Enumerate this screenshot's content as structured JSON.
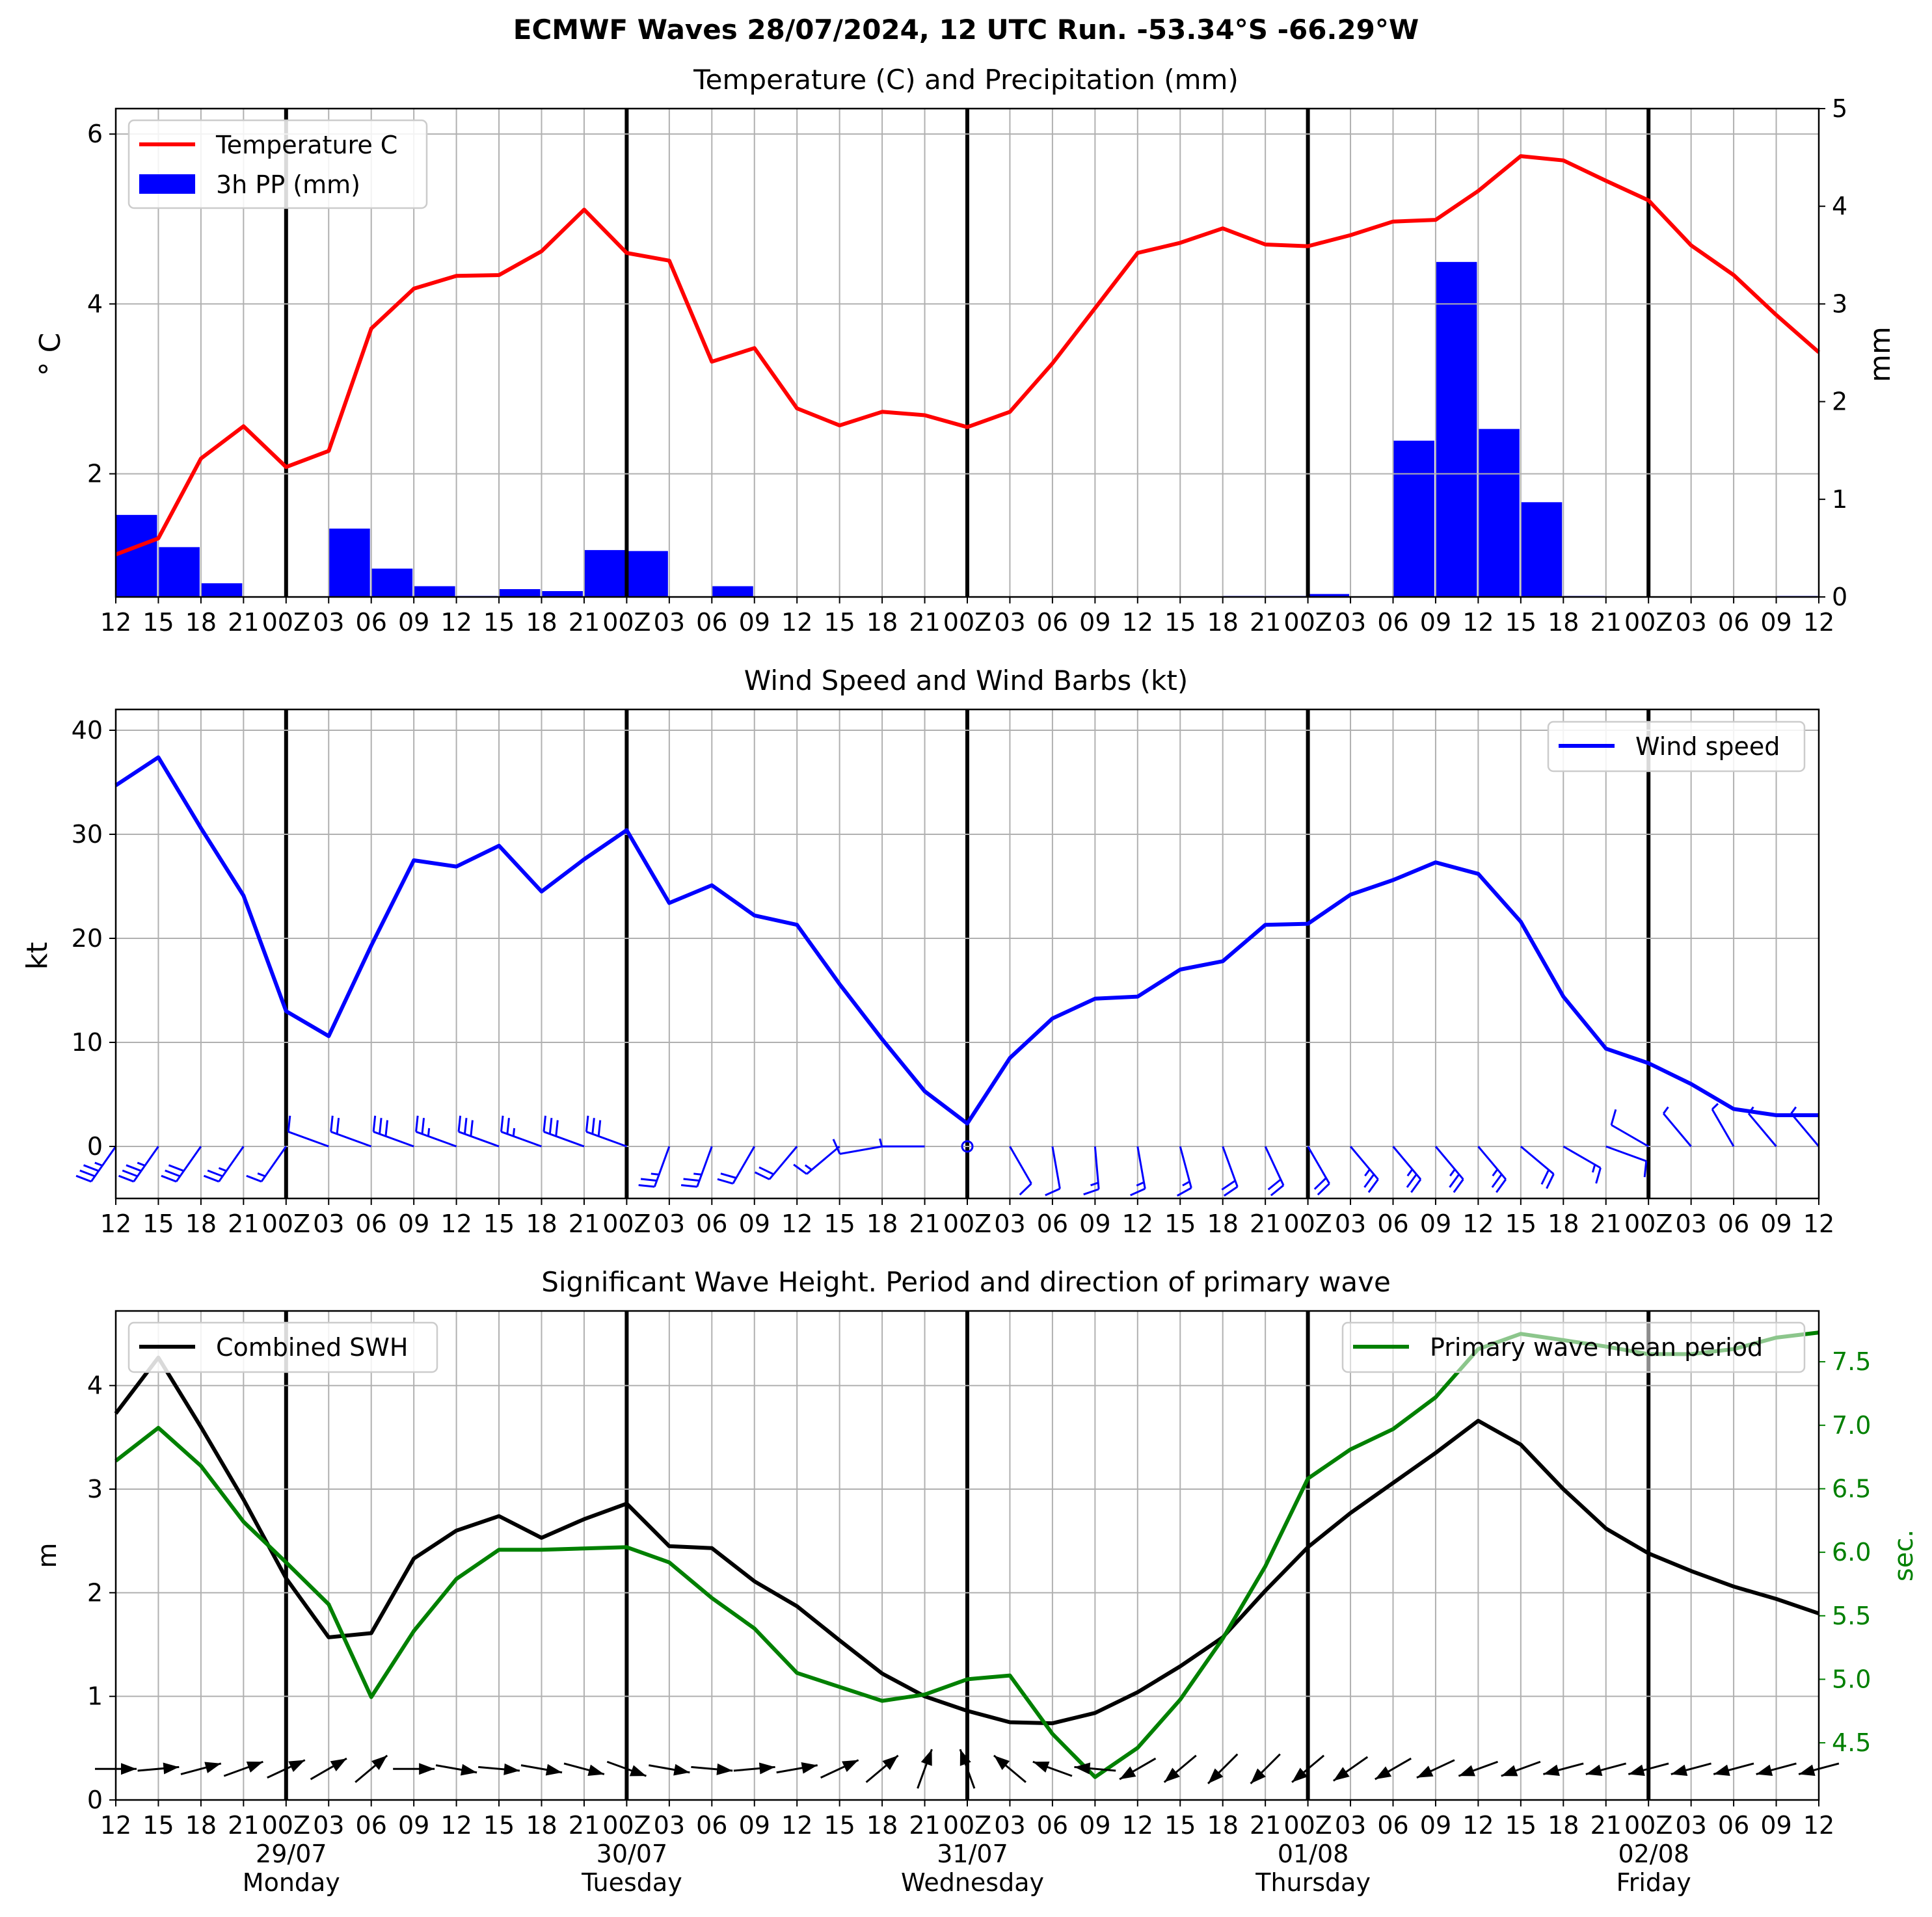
{
  "suptitle": "ECMWF Waves 28/07/2024, 12 UTC Run. -53.34°S -66.29°W",
  "x_tick_labels": [
    "12",
    "15",
    "18",
    "21",
    "00Z",
    "03",
    "06",
    "09",
    "12",
    "15",
    "18",
    "21",
    "00Z",
    "03",
    "06",
    "09",
    "12",
    "15",
    "18",
    "21",
    "00Z",
    "03",
    "06",
    "09",
    "12",
    "15",
    "18",
    "21",
    "00Z",
    "03",
    "06",
    "09",
    "12",
    "15",
    "18",
    "21",
    "00Z",
    "03",
    "06",
    "09",
    "12"
  ],
  "day_labels": [
    {
      "date": "29/07",
      "day": "Monday"
    },
    {
      "date": "30/07",
      "day": "Tuesday"
    },
    {
      "date": "31/07",
      "day": "Wednesday"
    },
    {
      "date": "01/08",
      "day": "Thursday"
    },
    {
      "date": "02/08",
      "day": "Friday"
    }
  ],
  "chart_data": [
    {
      "type": "line",
      "title": "Temperature (C) and Precipitation (mm)",
      "ylabel": "° C",
      "ylabel_right": "mm",
      "ylim": [
        0.55,
        6.3
      ],
      "yticks": [
        2,
        4,
        6
      ],
      "ylim_right": [
        0,
        5
      ],
      "yticks_right": [
        0,
        1,
        2,
        3,
        4,
        5
      ],
      "legend_position": "upper-left",
      "grid": true,
      "series": [
        {
          "name": "Temperature C",
          "color": "#ff0000",
          "values": [
            1.05,
            1.24,
            2.18,
            2.56,
            2.08,
            2.27,
            3.71,
            4.18,
            4.33,
            4.34,
            4.62,
            5.11,
            4.6,
            4.51,
            3.32,
            3.48,
            2.77,
            2.57,
            2.73,
            2.69,
            2.55,
            2.73,
            3.3,
            3.95,
            4.6,
            4.72,
            4.89,
            4.7,
            4.68,
            4.81,
            4.97,
            4.99,
            5.33,
            5.74,
            5.69,
            5.45,
            5.22,
            4.69,
            4.34,
            3.87,
            3.43
          ]
        },
        {
          "name": "3h PP (mm)",
          "type": "bar",
          "color": "#0000ff",
          "values": [
            0.84,
            0.51,
            0.14,
            0,
            0,
            0.7,
            0.29,
            0.11,
            0.01,
            0.08,
            0.06,
            0.48,
            0.47,
            0,
            0.11,
            0,
            0,
            0,
            0,
            0,
            0,
            0,
            0,
            0,
            0,
            0,
            0.01,
            0.01,
            0.03,
            0,
            1.6,
            3.43,
            1.72,
            0.97,
            0.01,
            0,
            0,
            0,
            0,
            0.01
          ]
        }
      ]
    },
    {
      "type": "line",
      "title": "Wind Speed and Wind Barbs (kt)",
      "ylabel": "kt",
      "ylim": [
        -5,
        42
      ],
      "yticks": [
        0,
        10,
        20,
        30,
        40
      ],
      "legend_position": "upper-right",
      "grid": true,
      "series": [
        {
          "name": "Wind speed",
          "color": "#0000ff",
          "values": [
            34.7,
            37.4,
            30.6,
            24.1,
            13.0,
            10.6,
            19.3,
            27.5,
            26.9,
            28.9,
            24.5,
            27.6,
            30.4,
            23.4,
            25.1,
            22.2,
            21.3,
            15.6,
            10.3,
            5.3,
            2.2,
            8.5,
            12.3,
            14.2,
            14.4,
            17.0,
            17.8,
            21.3,
            21.4,
            24.2,
            25.6,
            27.3,
            26.2,
            21.6,
            14.4,
            9.4,
            8.0,
            6.0,
            3.6,
            3.0,
            3.0
          ]
        }
      ],
      "barbs": {
        "color": "#0000ff",
        "direction_deg": [
          215,
          215,
          215,
          215,
          215,
          290,
          290,
          290,
          290,
          290,
          290,
          290,
          290,
          200,
          200,
          210,
          220,
          230,
          260,
          270,
          0,
          150,
          170,
          175,
          170,
          165,
          160,
          155,
          150,
          140,
          140,
          140,
          140,
          130,
          120,
          110,
          300,
          320,
          330,
          320,
          320
        ],
        "speed_kt": [
          34.7,
          37.4,
          30.6,
          24.1,
          13.0,
          10.6,
          19.3,
          27.5,
          26.9,
          28.9,
          24.5,
          27.6,
          30.4,
          23.4,
          25.1,
          22.2,
          21.3,
          15.6,
          10.3,
          5.3,
          2.2,
          8.5,
          12.3,
          14.2,
          14.4,
          17.0,
          17.8,
          21.3,
          21.4,
          24.2,
          25.6,
          27.3,
          26.2,
          21.6,
          14.4,
          9.4,
          8.0,
          6.0,
          3.6,
          3.0,
          3.0
        ]
      }
    },
    {
      "type": "line",
      "title": "Significant Wave Height. Period and direction of primary wave",
      "ylabel": "m",
      "ylabel_right": "sec.",
      "ylabel_right_color": "#008000",
      "ylim": [
        0,
        4.72
      ],
      "yticks": [
        0,
        1,
        2,
        3,
        4
      ],
      "ylim_right": [
        4.05,
        7.9
      ],
      "yticks_right": [
        4.5,
        5.0,
        5.5,
        6.0,
        6.5,
        7.0,
        7.5
      ],
      "grid": true,
      "series": [
        {
          "name": "Combined SWH",
          "color": "#000000",
          "legend_position": "upper-left",
          "values": [
            3.73,
            4.27,
            3.6,
            2.9,
            2.14,
            1.57,
            1.61,
            2.33,
            2.6,
            2.74,
            2.53,
            2.71,
            2.86,
            2.45,
            2.43,
            2.11,
            1.87,
            1.54,
            1.22,
            1.0,
            0.86,
            0.75,
            0.74,
            0.84,
            1.04,
            1.29,
            1.57,
            2.02,
            2.44,
            2.77,
            3.06,
            3.35,
            3.66,
            3.43,
            3.0,
            2.62,
            2.38,
            2.21,
            2.06,
            1.94,
            1.8
          ]
        },
        {
          "name": "Primary wave mean period",
          "color": "#008000",
          "legend_position": "upper-right",
          "values": [
            6.72,
            6.98,
            6.68,
            6.24,
            5.92,
            5.59,
            4.86,
            5.38,
            5.79,
            6.02,
            6.02,
            6.03,
            6.04,
            5.92,
            5.64,
            5.4,
            5.05,
            4.94,
            4.83,
            4.88,
            5.0,
            5.03,
            4.57,
            4.23,
            4.46,
            4.84,
            5.32,
            5.89,
            6.58,
            6.81,
            6.97,
            7.22,
            7.6,
            7.72,
            7.67,
            7.62,
            7.56,
            7.56,
            7.6,
            7.69,
            7.73
          ]
        }
      ],
      "arrows": {
        "color": "#000000",
        "direction_deg": [
          270,
          265,
          255,
          250,
          245,
          240,
          230,
          270,
          280,
          275,
          280,
          285,
          290,
          280,
          275,
          265,
          260,
          245,
          230,
          200,
          160,
          130,
          110,
          95,
          60,
          50,
          45,
          45,
          50,
          55,
          60,
          65,
          70,
          70,
          75,
          75,
          75,
          75,
          75,
          75,
          75
        ]
      }
    }
  ]
}
